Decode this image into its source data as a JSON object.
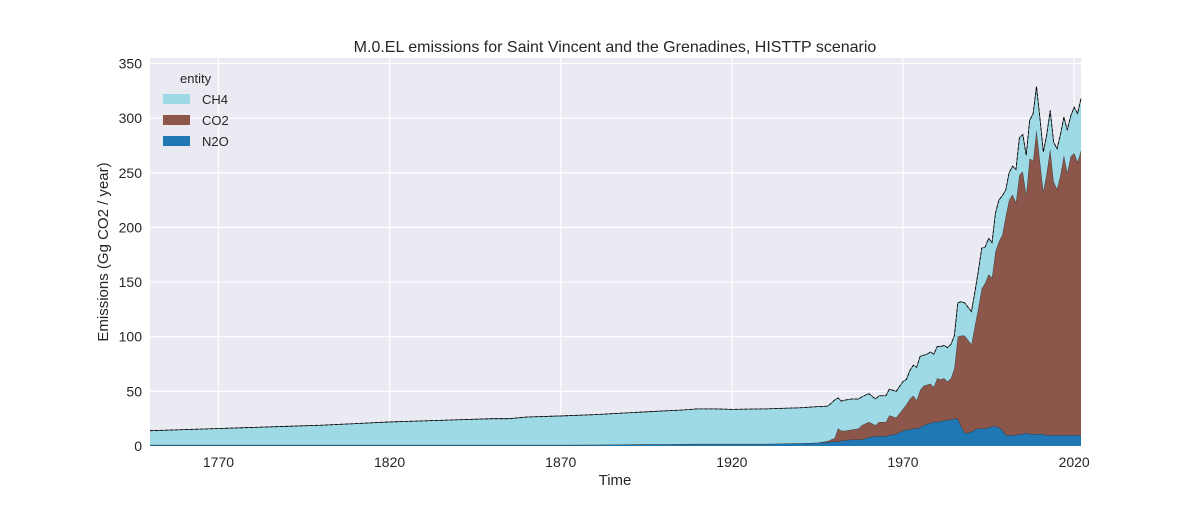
{
  "chart_data": {
    "type": "area",
    "stacked": true,
    "title": "M.0.EL emissions for Saint Vincent and the Grenadines, HISTTP scenario",
    "xlabel": "Time",
    "ylabel": "Emissions (Gg CO2 / year)",
    "xlim": [
      1750,
      2022
    ],
    "ylim": [
      0,
      355
    ],
    "xticks": [
      1770,
      1820,
      1870,
      1920,
      1970,
      2020
    ],
    "yticks": [
      0,
      50,
      100,
      150,
      200,
      250,
      300,
      350
    ],
    "grid": true,
    "legend": {
      "title": "entity",
      "position": "top-left"
    },
    "x": [
      1750,
      1760,
      1770,
      1780,
      1790,
      1800,
      1810,
      1820,
      1830,
      1840,
      1850,
      1855,
      1860,
      1870,
      1880,
      1890,
      1900,
      1905,
      1910,
      1915,
      1920,
      1930,
      1940,
      1945,
      1948,
      1949,
      1950,
      1951,
      1952,
      1953,
      1955,
      1957,
      1958,
      1960,
      1962,
      1963,
      1965,
      1966,
      1968,
      1970,
      1971,
      1972,
      1973,
      1974,
      1975,
      1976,
      1977,
      1978,
      1979,
      1980,
      1981,
      1982,
      1983,
      1984,
      1985,
      1986,
      1987,
      1988,
      1989,
      1990,
      1991,
      1992,
      1993,
      1994,
      1995,
      1996,
      1997,
      1998,
      1999,
      2000,
      2001,
      2002,
      2003,
      2004,
      2005,
      2006,
      2007,
      2008,
      2009,
      2010,
      2011,
      2012,
      2013,
      2014,
      2015,
      2016,
      2017,
      2018,
      2019,
      2020,
      2021,
      2022
    ],
    "series": [
      {
        "name": "N2O",
        "color": "#1f77b4",
        "values": [
          1,
          1,
          1,
          1,
          1,
          1,
          1,
          1,
          1,
          1,
          1,
          1,
          1,
          1,
          1.2,
          1.4,
          1.6,
          1.8,
          2,
          2,
          2,
          2,
          2.5,
          3,
          3.5,
          4,
          4,
          4,
          5,
          5,
          6,
          6,
          6,
          8,
          9,
          9,
          9,
          10,
          11,
          14,
          15,
          15,
          16,
          16,
          17,
          19,
          20,
          21,
          22,
          22,
          23,
          23,
          24,
          24,
          25,
          25,
          18,
          12,
          12,
          13,
          15,
          16,
          16,
          16,
          17,
          18,
          18,
          17,
          15,
          10,
          10,
          10,
          10,
          11,
          11,
          12,
          11,
          11,
          11,
          11,
          11,
          10,
          10,
          10,
          10,
          10,
          10,
          10,
          10,
          10,
          10,
          10
        ]
      },
      {
        "name": "CO2",
        "color": "#8c564b",
        "values": [
          0,
          0,
          0,
          0,
          0,
          0,
          0,
          0,
          0,
          0,
          0,
          0,
          0,
          0,
          0,
          0,
          0,
          0,
          0,
          0,
          0,
          0,
          0,
          0,
          1,
          2,
          3,
          12,
          9,
          9,
          9,
          10,
          13,
          14,
          10,
          13,
          13,
          18,
          15,
          20,
          23,
          28,
          30,
          26,
          34,
          36,
          36,
          36,
          32,
          40,
          38,
          39,
          35,
          38,
          46,
          75,
          83,
          89,
          85,
          80,
          95,
          110,
          128,
          133,
          140,
          136,
          160,
          170,
          178,
          200,
          215,
          220,
          213,
          237,
          240,
          218,
          252,
          250,
          278,
          250,
          222,
          240,
          262,
          232,
          225,
          238,
          256,
          240,
          255,
          258,
          250,
          260
        ]
      },
      {
        "name": "CH4",
        "color": "#9edae5",
        "values": [
          13,
          14,
          15,
          16,
          17,
          18,
          19.5,
          21,
          22,
          23,
          24,
          24,
          25.5,
          26.5,
          27.5,
          29,
          30.5,
          31,
          32,
          32,
          31.5,
          32,
          32.5,
          33,
          32,
          33,
          35,
          28,
          27,
          28,
          28,
          27,
          26,
          26,
          24,
          24,
          24,
          24,
          24,
          25,
          23,
          26,
          28,
          30,
          31,
          28,
          28,
          29,
          30,
          29,
          30,
          30,
          31,
          31,
          30,
          31,
          31,
          30,
          30,
          30,
          31,
          34,
          37,
          33,
          33,
          32,
          35,
          38,
          36,
          24,
          25,
          26,
          30,
          34,
          34,
          36,
          35,
          43,
          40,
          39,
          36,
          35,
          35,
          36,
          37,
          37,
          35,
          39,
          37,
          42,
          44,
          48
        ]
      }
    ]
  }
}
